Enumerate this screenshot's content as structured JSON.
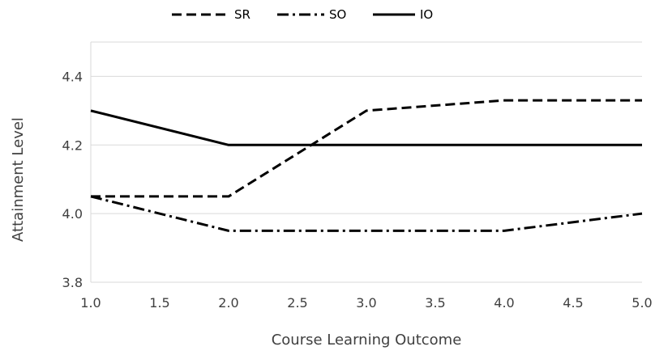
{
  "chart_data": {
    "type": "line",
    "xlabel": "Course Learning Outcome",
    "ylabel": "Attainment Level",
    "xlim": [
      1.0,
      5.0
    ],
    "ylim": [
      3.8,
      4.5
    ],
    "x_ticks": [
      "1.0",
      "1.5",
      "2.0",
      "2.5",
      "3.0",
      "3.5",
      "4.0",
      "4.5",
      "5.0"
    ],
    "y_ticks": [
      "3.8",
      "4.0",
      "4.2",
      "4.4"
    ],
    "grid": "horizontal",
    "legend_position": "top",
    "series": [
      {
        "name": "SR",
        "style": "dashed",
        "x": [
          1,
          2,
          3,
          4,
          5
        ],
        "y": [
          4.05,
          4.05,
          4.3,
          4.33,
          4.33
        ]
      },
      {
        "name": "SO",
        "style": "dash-dot",
        "x": [
          1,
          2,
          3,
          4,
          5
        ],
        "y": [
          4.05,
          3.95,
          3.95,
          3.95,
          4.0
        ]
      },
      {
        "name": "IO",
        "style": "solid",
        "x": [
          1,
          2,
          3,
          4,
          5
        ],
        "y": [
          4.3,
          4.2,
          4.2,
          4.2,
          4.2
        ]
      }
    ],
    "line_color": "#000000",
    "grid_color": "#d9d9d9"
  }
}
